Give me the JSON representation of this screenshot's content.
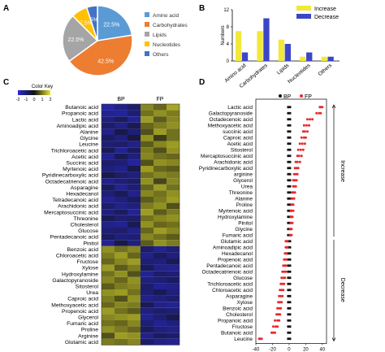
{
  "panels": {
    "a": "A",
    "b": "B",
    "c": "C",
    "d": "D"
  },
  "chart_data": [
    {
      "panel": "A",
      "type": "pie",
      "labels": [
        "Amino acid",
        "Carbohydrates",
        "Lipids",
        "Nucleotides",
        "Others"
      ],
      "values": [
        22.5,
        42.5,
        22.5,
        7.5,
        5.0
      ],
      "value_labels": [
        "22.5%",
        "42.5%",
        "22.5%",
        "7.5%",
        "5%"
      ],
      "colors": [
        "#5b9bd5",
        "#ed7d31",
        "#a5a5a5",
        "#ffc000",
        "#4472c4"
      ],
      "legend_position": "right"
    },
    {
      "panel": "B",
      "type": "bar",
      "categories": [
        "Amino acid",
        "Carbohydrates",
        "Lipids",
        "Nucleotides",
        "Others"
      ],
      "series": [
        {
          "name": "Increase",
          "values": [
            7,
            7,
            5,
            1,
            1
          ],
          "color": "#f2e83a"
        },
        {
          "name": "Decrease",
          "values": [
            2,
            10,
            4,
            2,
            1
          ],
          "color": "#3c46c8"
        }
      ],
      "ylabel": "Numbers",
      "ylim": [
        0,
        12
      ],
      "yticks": [
        0,
        4,
        8,
        12
      ],
      "legend_position": "top-right"
    },
    {
      "panel": "C",
      "type": "heatmap",
      "color_key": {
        "title": "Color Key",
        "ticks": [
          "-2",
          "-1",
          "0",
          "1",
          "2"
        ]
      },
      "column_groups": [
        "BP",
        "FP"
      ],
      "columns_per_group": 3,
      "rows": [
        "Butanoic acid",
        "Propanoic acid",
        "Lactic acid",
        "Aminoadipic acid",
        "Alanine",
        "Glycine",
        "Leucine",
        "Trichloroacetic acid",
        "Acetic acid",
        "Succinic acid",
        "Myrtenoic acid",
        "Pyridinecarboxylic acid",
        "Octadecatrienoic acid",
        "Asparagine",
        "Hexadecanol",
        "Tetradecanoic acid",
        "Arachidonic acid",
        "Mercaptosuccinic acid",
        "Threonine",
        "Cholesterol",
        "Glucose",
        "Pentadecanoic acid",
        "Pinitol",
        "Benzoic acid",
        "Chloroacetic acid",
        "Fructose",
        "Xylose",
        "Hydroxylamine",
        "Galactopyranoside",
        "Sitosterol",
        "Urea",
        "Caproic acid",
        "Methoxyacetic acid",
        "Propenoic acid",
        "Glycerol",
        "Fumaric acid",
        "Proline",
        "Arginine",
        "Glutamic acid"
      ],
      "values": [
        [
          -1.5,
          -1.2,
          -0.9,
          1.1,
          0.8,
          1.4
        ],
        [
          -1.3,
          -1.4,
          -1.0,
          0.9,
          1.2,
          1.0
        ],
        [
          -1.1,
          -0.8,
          -1.3,
          1.3,
          0.7,
          1.1
        ],
        [
          -0.9,
          -1.2,
          -0.7,
          0.8,
          1.0,
          1.2
        ],
        [
          -1.2,
          -0.6,
          -1.0,
          0.6,
          1.3,
          0.9
        ],
        [
          -0.8,
          -1.1,
          -0.5,
          1.2,
          0.4,
          0.9
        ],
        [
          -1.0,
          -0.9,
          -1.2,
          0.7,
          1.1,
          1.3
        ],
        [
          -0.7,
          -1.3,
          -0.8,
          1.0,
          0.6,
          1.2
        ],
        [
          -1.3,
          -0.7,
          -1.1,
          1.1,
          0.9,
          0.8
        ],
        [
          -0.9,
          -1.0,
          -1.4,
          0.6,
          1.2,
          1.1
        ],
        [
          -1.1,
          -1.2,
          -0.6,
          1.3,
          0.8,
          0.7
        ],
        [
          -0.6,
          -0.9,
          -1.1,
          0.9,
          1.1,
          1.0
        ],
        [
          -1.2,
          -1.0,
          -0.9,
          1.2,
          0.5,
          1.1
        ],
        [
          -0.8,
          -1.3,
          -1.0,
          0.8,
          1.3,
          0.9
        ],
        [
          -1.0,
          -0.7,
          -1.2,
          1.1,
          0.9,
          1.2
        ],
        [
          -1.3,
          -1.1,
          -0.8,
          0.7,
          1.0,
          1.3
        ],
        [
          -0.9,
          -1.2,
          -1.1,
          1.0,
          1.2,
          0.6
        ],
        [
          -1.1,
          -0.8,
          -1.3,
          1.3,
          0.7,
          1.0
        ],
        [
          -0.7,
          -1.0,
          -0.9,
          0.9,
          1.1,
          1.2
        ],
        [
          -1.2,
          -1.3,
          -0.7,
          1.2,
          0.8,
          0.9
        ],
        [
          -1.0,
          -0.9,
          -1.2,
          0.8,
          1.3,
          1.1
        ],
        [
          -0.8,
          -1.1,
          -1.0,
          1.1,
          0.9,
          0.7
        ],
        [
          -1.3,
          -0.6,
          -1.1,
          0.7,
          1.2,
          1.0
        ],
        [
          1.2,
          0.9,
          1.1,
          -0.9,
          -1.3,
          -1.0
        ],
        [
          1.0,
          1.3,
          0.8,
          -1.2,
          -0.8,
          -1.1
        ],
        [
          0.8,
          1.1,
          1.3,
          -1.0,
          -1.1,
          -0.7
        ],
        [
          1.3,
          0.7,
          1.0,
          -0.8,
          -1.2,
          -1.3
        ],
        [
          0.9,
          1.2,
          0.6,
          -1.3,
          -0.9,
          -1.0
        ],
        [
          1.1,
          0.8,
          1.2,
          -1.1,
          -1.0,
          -0.8
        ],
        [
          0.7,
          1.0,
          1.1,
          -0.9,
          -1.3,
          -1.2
        ],
        [
          1.2,
          1.3,
          0.9,
          -1.0,
          -0.7,
          -1.1
        ],
        [
          1.0,
          0.6,
          1.2,
          -1.2,
          -1.1,
          -0.9
        ],
        [
          0.8,
          1.1,
          1.0,
          -0.7,
          -1.2,
          -1.3
        ],
        [
          1.3,
          0.9,
          0.7,
          -1.1,
          -0.9,
          -1.0
        ],
        [
          1.1,
          1.2,
          1.3,
          -1.3,
          -1.0,
          -0.6
        ],
        [
          0.9,
          0.8,
          1.1,
          -1.0,
          -1.3,
          -1.1
        ],
        [
          1.2,
          1.0,
          0.8,
          -0.8,
          -1.1,
          -1.2
        ],
        [
          0.6,
          1.3,
          1.2,
          -1.2,
          -0.8,
          -0.9
        ],
        [
          1.0,
          0.9,
          1.1,
          -0.9,
          -1.2,
          -1.3
        ]
      ]
    },
    {
      "panel": "D",
      "type": "scatter",
      "series": [
        {
          "name": "BP",
          "color": "#111111"
        },
        {
          "name": "FP",
          "color": "#e8282c"
        }
      ],
      "rows": [
        "Lactic acid",
        "Galactopyranoside",
        "Octadecenoic acid",
        "Methoxyacetic acid",
        "succinic acid",
        "Caproic acid",
        "Acetic acid",
        "Sitosterol",
        "Mercaptosuccinic acid",
        "Arachidonic acid",
        "Pyridinecarboxylic acid",
        "arginine",
        "Glycerol",
        "Urea",
        "Threonine",
        "Alanine",
        "Proline",
        "Myrtenoic acid",
        "Hydroxylamine",
        "Pinitol",
        "Glycine",
        "Fumaric acid",
        "Glutamic acid",
        "Aminoadipic acid",
        "Hexadecanol",
        "Propenoic acid",
        "Pentadecanoic acid",
        "Octadecatrienoic acid",
        "Glucose",
        "Trichloroacetic acid",
        "Chloroacetic acid",
        "Asparagine",
        "Xylose",
        "Benzoic acid",
        "Cholesterol",
        "Propanoic acid",
        "Fructose",
        "Butanoic acid",
        "Leucine"
      ],
      "BP": [
        0,
        0,
        0,
        0,
        0,
        0,
        0,
        0,
        0,
        0,
        0,
        0,
        0,
        0,
        0,
        0,
        0,
        0,
        0,
        0,
        0,
        0,
        0,
        0,
        0,
        0,
        0,
        0,
        0,
        0,
        0,
        0,
        0,
        0,
        0,
        0,
        0,
        0,
        0
      ],
      "FP": [
        [
          38,
          40,
          37
        ],
        [
          33,
          36,
          38
        ],
        [
          22,
          25,
          28
        ],
        [
          18,
          21,
          24
        ],
        [
          17,
          19,
          22
        ],
        [
          15,
          18,
          20
        ],
        [
          13,
          16,
          19
        ],
        [
          11,
          14,
          17
        ],
        [
          10,
          12,
          15
        ],
        [
          8,
          10,
          13
        ],
        [
          7,
          9,
          11
        ],
        [
          6,
          8,
          10
        ],
        [
          5,
          7,
          9
        ],
        [
          5,
          6,
          8
        ],
        [
          4,
          5,
          7
        ],
        [
          3,
          4,
          6
        ],
        [
          3,
          4,
          5
        ],
        [
          2,
          3,
          5
        ],
        [
          2,
          3,
          4
        ],
        [
          2,
          3,
          4
        ],
        [
          1,
          2,
          3
        ],
        [
          1,
          2,
          3
        ],
        [
          -2,
          -3,
          -4
        ],
        [
          -2,
          -3,
          -4
        ],
        [
          -3,
          -4,
          -5
        ],
        [
          -3,
          -5,
          -6
        ],
        [
          -4,
          -5,
          -7
        ],
        [
          -4,
          -6,
          -8
        ],
        [
          -5,
          -7,
          -9
        ],
        [
          -6,
          -8,
          -10
        ],
        [
          -7,
          -9,
          -11
        ],
        [
          -8,
          -10,
          -12
        ],
        [
          -9,
          -11,
          -13
        ],
        [
          -10,
          -12,
          -14
        ],
        [
          -11,
          -13,
          -15
        ],
        [
          -12,
          -14,
          -17
        ],
        [
          -14,
          -16,
          -19
        ],
        [
          -17,
          -19,
          -21
        ],
        [
          -33,
          -35,
          -36
        ]
      ],
      "xticks": [
        -40,
        -20,
        0,
        20,
        40
      ],
      "xlim": [
        -40,
        45
      ],
      "groups": [
        {
          "label": "Increase",
          "rows": 22
        },
        {
          "label": "Decrease",
          "rows": 17
        }
      ],
      "legend_position": "top"
    }
  ]
}
